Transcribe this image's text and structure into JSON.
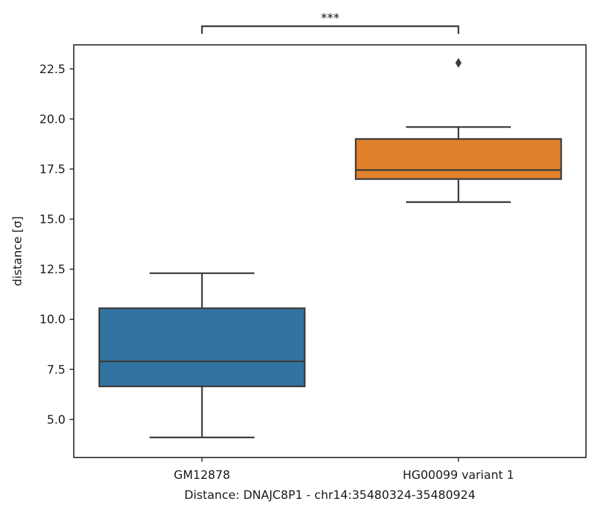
{
  "chart_data": {
    "type": "box",
    "title": "",
    "xlabel": "Distance:  DNAJC8P1 - chr14:35480324-35480924",
    "ylabel": "distance [σ]",
    "ylim": [
      3.1,
      23.7
    ],
    "yticks": [
      5.0,
      7.5,
      10.0,
      12.5,
      15.0,
      17.5,
      20.0,
      22.5
    ],
    "ytick_labels": [
      "5.0",
      "7.5",
      "10.0",
      "12.5",
      "15.0",
      "17.5",
      "20.0",
      "22.5"
    ],
    "categories": [
      "GM12878",
      "HG00099 variant 1"
    ],
    "boxes": [
      {
        "category": "GM12878",
        "whisker_low": 4.1,
        "q1": 6.65,
        "median": 7.9,
        "q3": 10.55,
        "whisker_high": 12.3,
        "outliers": [],
        "color": "#3274a1"
      },
      {
        "category": "HG00099 variant 1",
        "whisker_low": 15.85,
        "q1": 17.0,
        "median": 17.45,
        "q3": 19.0,
        "whisker_high": 19.6,
        "outliers": [
          22.8
        ],
        "color": "#e1812c"
      }
    ],
    "significance": {
      "label": "***",
      "between": [
        "GM12878",
        "HG00099 variant 1"
      ]
    },
    "grid": false,
    "legend": "none"
  }
}
